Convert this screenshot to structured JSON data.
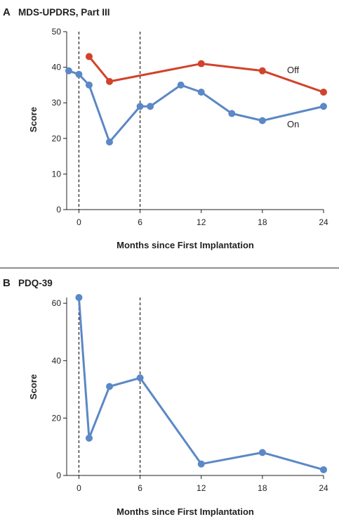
{
  "chart_data": [
    {
      "type": "line",
      "panel_letter": "A",
      "title": "MDS-UPDRS, Part III",
      "xlabel": "Months since First Implantation",
      "ylabel": "Score",
      "xlim": [
        -1.2,
        24
      ],
      "ylim": [
        0,
        50
      ],
      "xticks": [
        0,
        6,
        12,
        18,
        24
      ],
      "yticks": [
        0,
        10,
        20,
        30,
        40,
        50
      ],
      "reference_lines_x": [
        0,
        6
      ],
      "grid": false,
      "legend": "inline labels at right end of series",
      "series": [
        {
          "name": "Off",
          "color": "#d1432b",
          "x": [
            1,
            3,
            12,
            18,
            24
          ],
          "y": [
            43,
            36,
            41,
            39,
            33
          ]
        },
        {
          "name": "On",
          "color": "#5b88c6",
          "x": [
            -1,
            0,
            1,
            3,
            6,
            7,
            10,
            12,
            15,
            18,
            24
          ],
          "y": [
            39,
            38,
            35,
            19,
            29,
            29,
            35,
            33,
            27,
            25,
            29
          ]
        }
      ]
    },
    {
      "type": "line",
      "panel_letter": "B",
      "title": "PDQ-39",
      "xlabel": "Months since First Implantation",
      "ylabel": "Score",
      "xlim": [
        -1.2,
        24
      ],
      "ylim": [
        0,
        62
      ],
      "xticks": [
        0,
        6,
        12,
        18,
        24
      ],
      "yticks": [
        0,
        20,
        40,
        60
      ],
      "reference_lines_x": [
        0,
        6
      ],
      "grid": false,
      "legend": "none",
      "series": [
        {
          "color": "#5b88c6",
          "x": [
            0,
            1,
            3,
            6,
            12,
            18,
            24
          ],
          "y": [
            62,
            13,
            31,
            34,
            4,
            8,
            2
          ]
        }
      ]
    }
  ]
}
